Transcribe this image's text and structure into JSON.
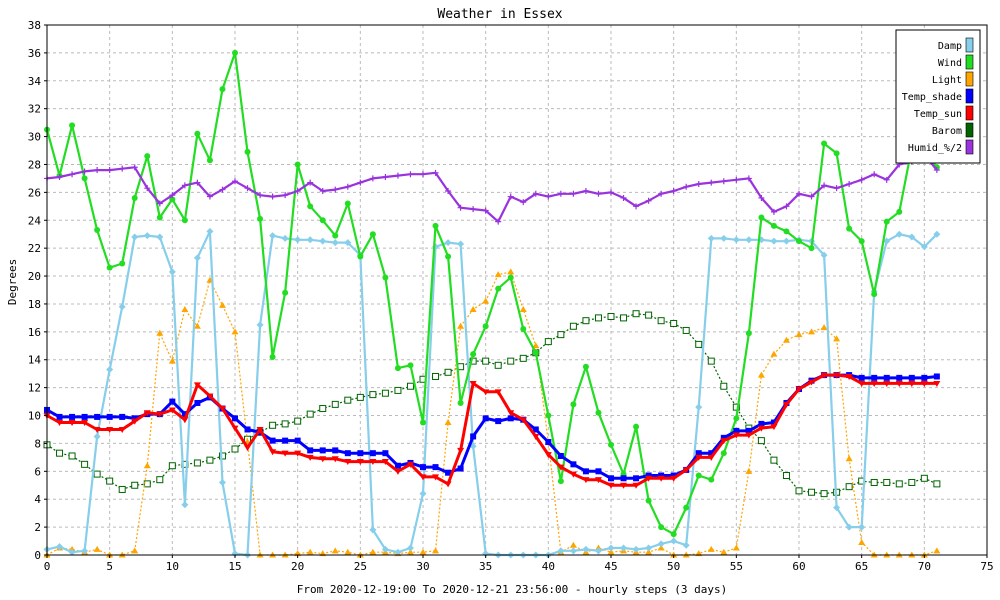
{
  "chart_data": {
    "type": "line",
    "title": "Weather in Essex",
    "xlabel": "From 2020-12-19:00 To 2020-12-21 23:56:00 - hourly steps (3 days)",
    "ylabel": "Degrees",
    "xlim": [
      0,
      75
    ],
    "ylim": [
      0,
      38
    ],
    "xticks": [
      0,
      5,
      10,
      15,
      20,
      25,
      30,
      35,
      40,
      45,
      50,
      55,
      60,
      65,
      70,
      75
    ],
    "yticks": [
      0,
      2,
      4,
      6,
      8,
      10,
      12,
      14,
      16,
      18,
      20,
      22,
      24,
      26,
      28,
      30,
      32,
      34,
      36,
      38
    ],
    "grid": true,
    "legend_position": "top-right",
    "series": [
      {
        "name": "Damp",
        "color": "#87CEEB",
        "line": "solid",
        "marker": "diamond",
        "values": [
          0.4,
          0.6,
          0.2,
          0.3,
          8.5,
          13.3,
          17.8,
          22.8,
          22.9,
          22.8,
          20.3,
          3.6,
          21.3,
          23.2,
          5.2,
          0.1,
          0.0,
          16.5,
          22.9,
          22.7,
          22.6,
          22.6,
          22.5,
          22.4,
          22.4,
          21.5,
          1.8,
          0.4,
          0.2,
          0.5,
          4.4,
          22.1,
          22.4,
          22.3,
          7.8,
          0.1,
          0.0,
          0.0,
          0.0,
          0.0,
          0.0,
          0.3,
          0.3,
          0.4,
          0.3,
          0.5,
          0.5,
          0.4,
          0.5,
          0.8,
          1.0,
          0.7,
          10.6,
          22.7,
          22.7,
          22.6,
          22.6,
          22.6,
          22.5,
          22.5,
          22.6,
          22.5,
          21.5,
          3.4,
          2.0,
          2.0,
          18.9,
          22.5,
          23.0,
          22.8,
          22.1,
          23.0
        ]
      },
      {
        "name": "Wind",
        "color": "#22dd22",
        "line": "solid",
        "marker": "circle",
        "values": [
          30.5,
          27.2,
          30.8,
          27.0,
          23.3,
          20.6,
          20.9,
          25.6,
          28.6,
          24.2,
          25.5,
          24.0,
          30.2,
          28.3,
          33.4,
          36.0,
          28.9,
          24.1,
          14.2,
          18.8,
          28.0,
          25.0,
          24.0,
          22.9,
          25.2,
          21.4,
          23.0,
          19.9,
          13.4,
          13.6,
          9.5,
          23.6,
          21.4,
          10.9,
          14.4,
          16.4,
          19.1,
          19.9,
          16.2,
          14.5,
          10.0,
          5.3,
          10.8,
          13.5,
          10.2,
          7.9,
          5.8,
          9.2,
          3.9,
          2.0,
          1.5,
          3.4,
          5.7,
          5.4,
          7.3,
          9.8,
          15.9,
          24.2,
          23.6,
          23.2,
          22.5,
          22.0,
          29.5,
          28.8,
          23.4,
          22.5,
          18.7,
          23.9,
          24.6,
          29.2,
          29.0,
          27.8
        ]
      },
      {
        "name": "Light",
        "color": "#FFA500",
        "line": "dotted",
        "marker": "triangle",
        "values": [
          0.0,
          0.5,
          0.4,
          0.2,
          0.4,
          0.0,
          0.0,
          0.3,
          6.4,
          15.9,
          13.9,
          17.6,
          16.4,
          19.7,
          17.9,
          16.0,
          8.1,
          0.0,
          0.0,
          0.0,
          0.1,
          0.2,
          0.1,
          0.3,
          0.2,
          0.0,
          0.2,
          0.2,
          0.1,
          0.2,
          0.2,
          0.3,
          9.5,
          16.4,
          17.6,
          18.2,
          20.1,
          20.3,
          17.6,
          15.0,
          8.1,
          0.2,
          0.7,
          0.2,
          0.5,
          0.2,
          0.3,
          0.2,
          0.2,
          0.5,
          0.0,
          0.0,
          0.1,
          0.4,
          0.2,
          0.5,
          6.0,
          12.9,
          14.4,
          15.4,
          15.8,
          16.0,
          16.3,
          15.5,
          6.9,
          0.9,
          0.0,
          0.0,
          0.0,
          0.0,
          0.0,
          0.3
        ]
      },
      {
        "name": "Temp_shade",
        "color": "#0000ff",
        "line": "solid",
        "marker": "square",
        "values": [
          10.4,
          9.9,
          9.9,
          9.9,
          9.9,
          9.9,
          9.9,
          9.8,
          10.1,
          10.1,
          11.0,
          10.1,
          10.9,
          11.3,
          10.5,
          9.8,
          9.0,
          8.8,
          8.2,
          8.2,
          8.2,
          7.5,
          7.5,
          7.5,
          7.3,
          7.3,
          7.3,
          7.3,
          6.4,
          6.6,
          6.3,
          6.3,
          5.9,
          6.2,
          8.5,
          9.8,
          9.6,
          9.8,
          9.7,
          9.0,
          8.1,
          7.1,
          6.5,
          6.0,
          6.0,
          5.5,
          5.5,
          5.5,
          5.7,
          5.7,
          5.7,
          6.1,
          7.3,
          7.3,
          8.4,
          8.9,
          8.9,
          9.4,
          9.5,
          10.9,
          11.9,
          12.5,
          12.9,
          12.9,
          12.9,
          12.7,
          12.7,
          12.7,
          12.7,
          12.7,
          12.7,
          12.8
        ]
      },
      {
        "name": "Temp_sun",
        "color": "#ff0000",
        "line": "solid",
        "marker": "triangle-down",
        "values": [
          10.0,
          9.5,
          9.5,
          9.5,
          9.0,
          9.0,
          9.0,
          9.6,
          10.2,
          10.1,
          10.4,
          9.7,
          12.2,
          11.4,
          10.5,
          9.1,
          7.7,
          9.0,
          7.4,
          7.3,
          7.3,
          7.0,
          6.9,
          6.9,
          6.7,
          6.7,
          6.7,
          6.7,
          6.0,
          6.5,
          5.6,
          5.6,
          5.1,
          7.5,
          12.3,
          11.7,
          11.7,
          10.2,
          9.7,
          8.5,
          7.2,
          6.3,
          5.8,
          5.4,
          5.4,
          5.0,
          5.0,
          5.0,
          5.5,
          5.5,
          5.5,
          6.1,
          7.0,
          7.0,
          8.2,
          8.6,
          8.6,
          9.1,
          9.2,
          10.8,
          11.9,
          12.4,
          12.9,
          12.9,
          12.8,
          12.3,
          12.3,
          12.3,
          12.3,
          12.3,
          12.3,
          12.3
        ]
      },
      {
        "name": "Barom",
        "color": "#006400",
        "line": "dotted",
        "marker": "open-square",
        "values": [
          7.9,
          7.3,
          7.1,
          6.5,
          5.8,
          5.3,
          4.7,
          5.0,
          5.1,
          5.4,
          6.4,
          6.5,
          6.6,
          6.8,
          7.1,
          7.6,
          8.3,
          8.8,
          9.3,
          9.4,
          9.6,
          10.1,
          10.5,
          10.8,
          11.1,
          11.3,
          11.5,
          11.6,
          11.8,
          12.1,
          12.6,
          12.8,
          13.1,
          13.5,
          13.9,
          13.9,
          13.6,
          13.9,
          14.1,
          14.5,
          15.3,
          15.8,
          16.4,
          16.8,
          17.0,
          17.1,
          17.0,
          17.3,
          17.2,
          16.8,
          16.6,
          16.1,
          15.1,
          13.9,
          12.1,
          10.6,
          9.1,
          8.2,
          6.8,
          5.7,
          4.6,
          4.5,
          4.4,
          4.5,
          4.9,
          5.3,
          5.2,
          5.2,
          5.1,
          5.2,
          5.5,
          5.1
        ]
      },
      {
        "name": "Humid_%/2",
        "color": "#9933dd",
        "line": "solid",
        "marker": "plus",
        "values": [
          27.0,
          27.1,
          27.3,
          27.5,
          27.6,
          27.6,
          27.7,
          27.8,
          26.3,
          25.2,
          25.8,
          26.5,
          26.7,
          25.7,
          26.2,
          26.8,
          26.3,
          25.8,
          25.7,
          25.8,
          26.1,
          26.7,
          26.1,
          26.2,
          26.4,
          26.7,
          27.0,
          27.1,
          27.2,
          27.3,
          27.3,
          27.4,
          26.1,
          24.9,
          24.8,
          24.7,
          23.9,
          25.7,
          25.3,
          25.9,
          25.7,
          25.9,
          25.9,
          26.1,
          25.9,
          26.0,
          25.6,
          25.0,
          25.4,
          25.9,
          26.1,
          26.4,
          26.6,
          26.7,
          26.8,
          26.9,
          27.0,
          25.6,
          24.6,
          25.0,
          25.9,
          25.7,
          26.5,
          26.3,
          26.6,
          26.9,
          27.3,
          26.9,
          28.0,
          28.2,
          28.7,
          27.6
        ]
      }
    ]
  }
}
